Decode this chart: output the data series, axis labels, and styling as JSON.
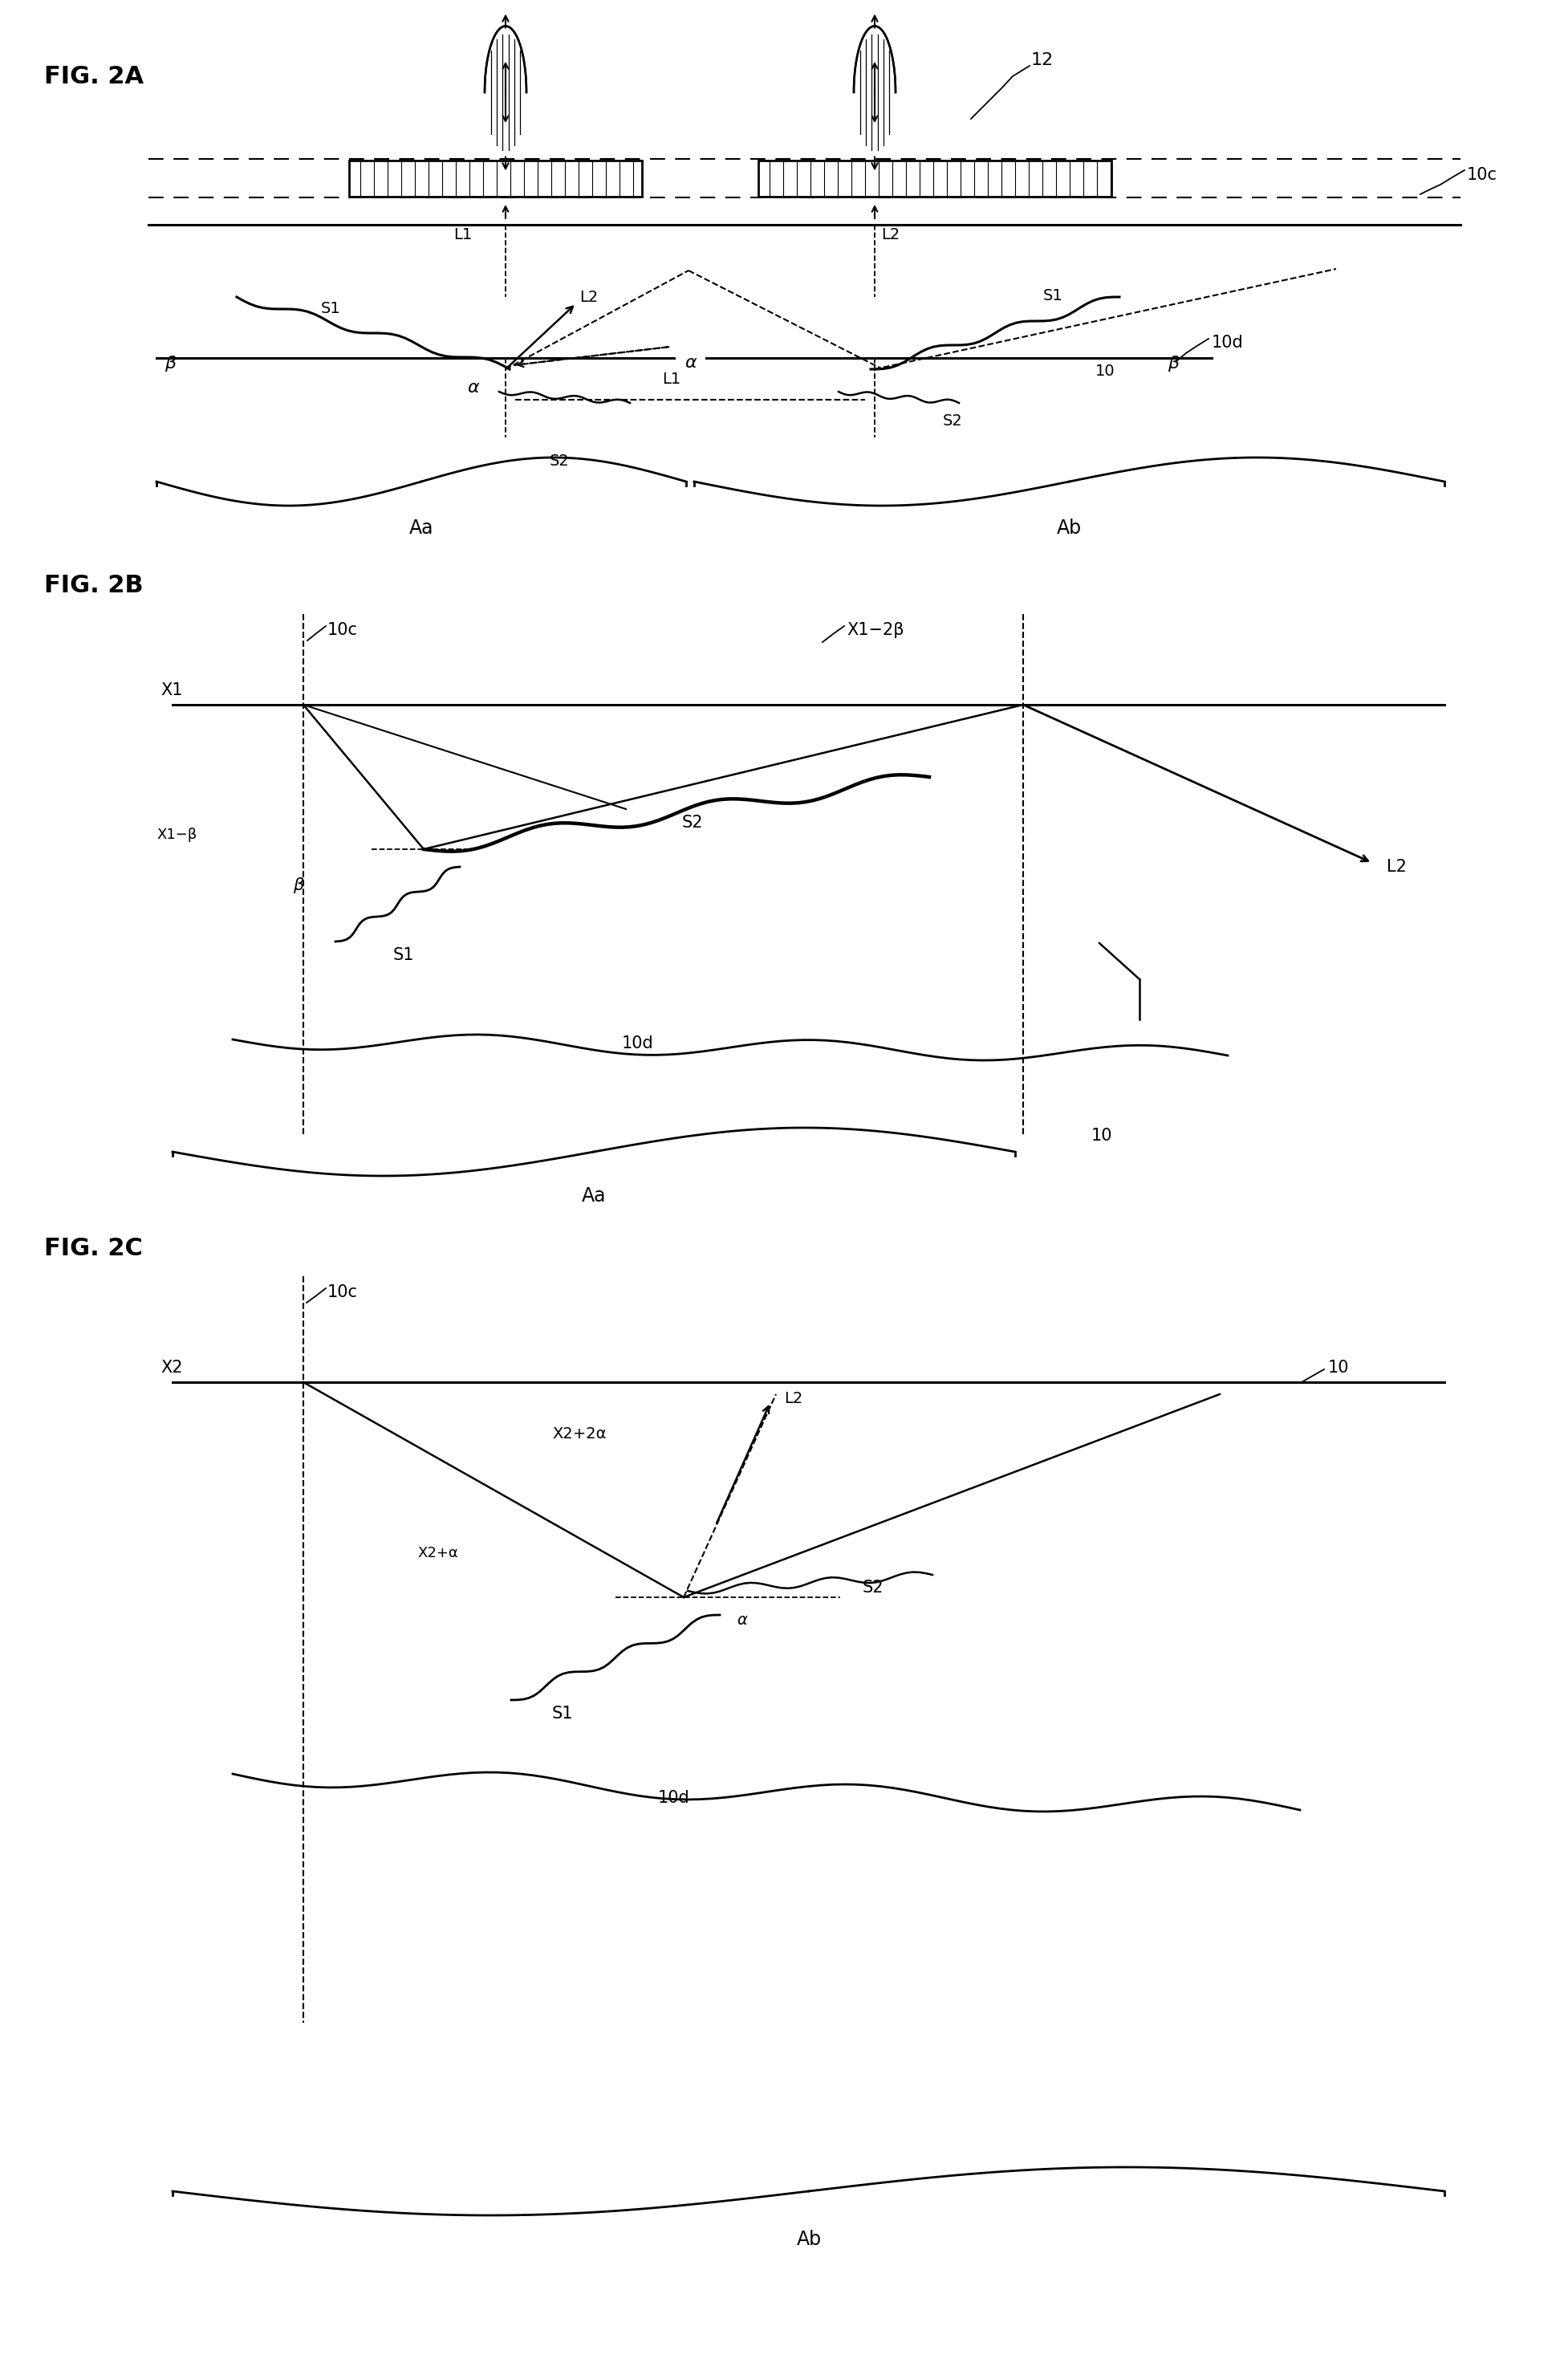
{
  "fig_width": 19.54,
  "fig_height": 29.39,
  "bg_color": "#ffffff",
  "line_color": "#000000",
  "labels": {
    "fig2a": "FIG. 2A",
    "fig2b": "FIG. 2B",
    "fig2c": "FIG. 2C",
    "label_12": "12",
    "label_10c": "10c",
    "label_10d": "10d",
    "label_10": "10",
    "label_L1": "L1",
    "label_L2": "L2",
    "label_S1": "S1",
    "label_S2": "S2",
    "label_alpha": "α",
    "label_beta": "β",
    "label_Aa": "Aa",
    "label_Ab": "Ab",
    "label_X1": "X1",
    "label_X1m2b": "X1−2β",
    "label_X1mb": "X1−β",
    "label_X2": "X2",
    "label_X2p2a": "X2+2α",
    "label_X2pa": "X2+α"
  }
}
